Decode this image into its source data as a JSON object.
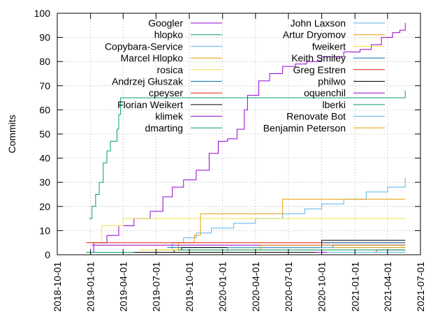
{
  "chart_data": {
    "type": "line",
    "ylabel": "Commits",
    "xlabel": "",
    "ylim": [
      0,
      100
    ],
    "xlim": [
      "2018-10-01",
      "2021-07-01"
    ],
    "yticks": [
      0,
      10,
      20,
      30,
      40,
      50,
      60,
      70,
      80,
      90,
      100
    ],
    "xticks": [
      "2018-10-01",
      "2019-01-01",
      "2019-04-01",
      "2019-07-01",
      "2019-10-01",
      "2020-01-01",
      "2020-04-01",
      "2020-07-01",
      "2020-10-01",
      "2021-01-01",
      "2021-04-01",
      "2021-07-01"
    ],
    "grid": true,
    "legend_position": "top",
    "series": [
      {
        "name": "Googler",
        "color": "#9400d3",
        "x": [
          "2018-12-20",
          "2019-01-10",
          "2019-02-15",
          "2019-03-20",
          "2019-05-01",
          "2019-06-15",
          "2019-07-20",
          "2019-08-15",
          "2019-09-15",
          "2019-10-20",
          "2019-11-25",
          "2019-12-20",
          "2020-01-15",
          "2020-02-10",
          "2020-03-01",
          "2020-03-10",
          "2020-04-10",
          "2020-05-10",
          "2020-06-15",
          "2020-07-20",
          "2020-08-20",
          "2020-10-01",
          "2020-12-01",
          "2021-01-15",
          "2021-02-15",
          "2021-03-15",
          "2021-04-15",
          "2021-05-05",
          "2021-05-20"
        ],
        "values": [
          1,
          5,
          8,
          12,
          15,
          18,
          24,
          28,
          31,
          35,
          42,
          47,
          48,
          52,
          60,
          66,
          72,
          75,
          78,
          79,
          80,
          82,
          84,
          85,
          87,
          90,
          92,
          93,
          96
        ]
      },
      {
        "name": "hlopko",
        "color": "#009e73",
        "x": [
          "2018-12-28",
          "2019-01-05",
          "2019-01-15",
          "2019-01-25",
          "2019-02-05",
          "2019-02-15",
          "2019-02-25",
          "2019-03-05",
          "2019-03-15",
          "2019-03-20",
          "2019-03-25",
          "2021-05-20"
        ],
        "values": [
          15,
          20,
          25,
          30,
          38,
          43,
          47,
          47,
          52,
          58,
          65,
          68
        ]
      },
      {
        "name": "Copybara-Service",
        "color": "#56b4e9",
        "x": [
          "2019-07-01",
          "2019-08-15",
          "2019-09-15",
          "2019-10-20",
          "2019-12-01",
          "2020-02-01",
          "2020-04-01",
          "2020-06-15",
          "2020-08-15",
          "2020-10-01",
          "2020-12-01",
          "2021-02-01",
          "2021-04-01",
          "2021-05-20"
        ],
        "values": [
          2,
          5,
          7,
          9,
          11,
          13,
          15,
          17,
          19,
          21,
          23,
          26,
          28,
          32
        ]
      },
      {
        "name": "Marcel Hlopko",
        "color": "#e69f00",
        "x": [
          "2019-07-15",
          "2019-09-01",
          "2019-10-15",
          "2019-11-01",
          "2020-03-01",
          "2020-06-01",
          "2020-06-15",
          "2021-05-20"
        ],
        "values": [
          2,
          5,
          8,
          17,
          17,
          17,
          23,
          23
        ]
      },
      {
        "name": "rosica",
        "color": "#f0e442",
        "x": [
          "2019-01-01",
          "2019-02-01",
          "2019-04-01",
          "2019-10-01",
          "2021-05-20"
        ],
        "values": [
          5,
          12,
          15,
          15,
          15
        ]
      },
      {
        "name": "Andrzej Głuszak",
        "color": "#0072b2",
        "x": [
          "2019-08-01",
          "2020-03-01",
          "2020-11-01",
          "2021-05-20"
        ],
        "values": [
          3,
          3,
          4,
          4
        ]
      },
      {
        "name": "cpeyser",
        "color": "#e51e10",
        "x": [
          "2018-12-20",
          "2021-05-20"
        ],
        "values": [
          5,
          5
        ]
      },
      {
        "name": "Florian Weikert",
        "color": "#000000",
        "x": [
          "2019-08-01",
          "2019-08-20",
          "2019-09-10",
          "2020-10-01",
          "2021-05-20"
        ],
        "values": [
          1,
          2,
          3,
          6,
          6
        ]
      },
      {
        "name": "klimek",
        "color": "#9400d3",
        "x": [
          "2019-01-05",
          "2021-05-20"
        ],
        "values": [
          4,
          4
        ]
      },
      {
        "name": "dmarting",
        "color": "#009e73",
        "x": [
          "2018-12-20",
          "2021-05-20"
        ],
        "values": [
          1,
          1
        ]
      },
      {
        "name": "John Laxson",
        "color": "#56b4e9",
        "x": [
          "2019-06-01",
          "2020-01-15",
          "2021-05-20"
        ],
        "values": [
          1,
          3,
          3
        ]
      },
      {
        "name": "Artur Dryomov",
        "color": "#e69f00",
        "x": [
          "2019-07-01",
          "2020-04-15",
          "2021-05-20"
        ],
        "values": [
          2,
          4,
          4
        ]
      },
      {
        "name": "fweikert",
        "color": "#f0e442",
        "x": [
          "2019-05-15",
          "2021-05-20"
        ],
        "values": [
          2,
          2
        ]
      },
      {
        "name": "Keith Smiley",
        "color": "#0072b2",
        "x": [
          "2020-10-01",
          "2021-05-20"
        ],
        "values": [
          5,
          5
        ]
      },
      {
        "name": "Greg Estren",
        "color": "#e51e10",
        "x": [
          "2021-02-15",
          "2021-03-01",
          "2021-05-20"
        ],
        "values": [
          1,
          2,
          2
        ]
      },
      {
        "name": "philwo",
        "color": "#000000",
        "x": [
          "2019-05-01",
          "2021-05-20"
        ],
        "values": [
          1,
          1
        ]
      },
      {
        "name": "oquenchil",
        "color": "#9400d3",
        "x": [
          "2020-09-15",
          "2021-05-20"
        ],
        "values": [
          1,
          1
        ]
      },
      {
        "name": "lberki",
        "color": "#009e73",
        "x": [
          "2019-09-01",
          "2021-05-20"
        ],
        "values": [
          2,
          2
        ]
      },
      {
        "name": "Renovate Bot",
        "color": "#56b4e9",
        "x": [
          "2020-10-15",
          "2021-05-20"
        ],
        "values": [
          1,
          1
        ]
      },
      {
        "name": "Benjamin Peterson",
        "color": "#e69f00",
        "x": [
          "2020-11-01",
          "2021-05-20"
        ],
        "values": [
          3,
          3
        ]
      }
    ]
  }
}
